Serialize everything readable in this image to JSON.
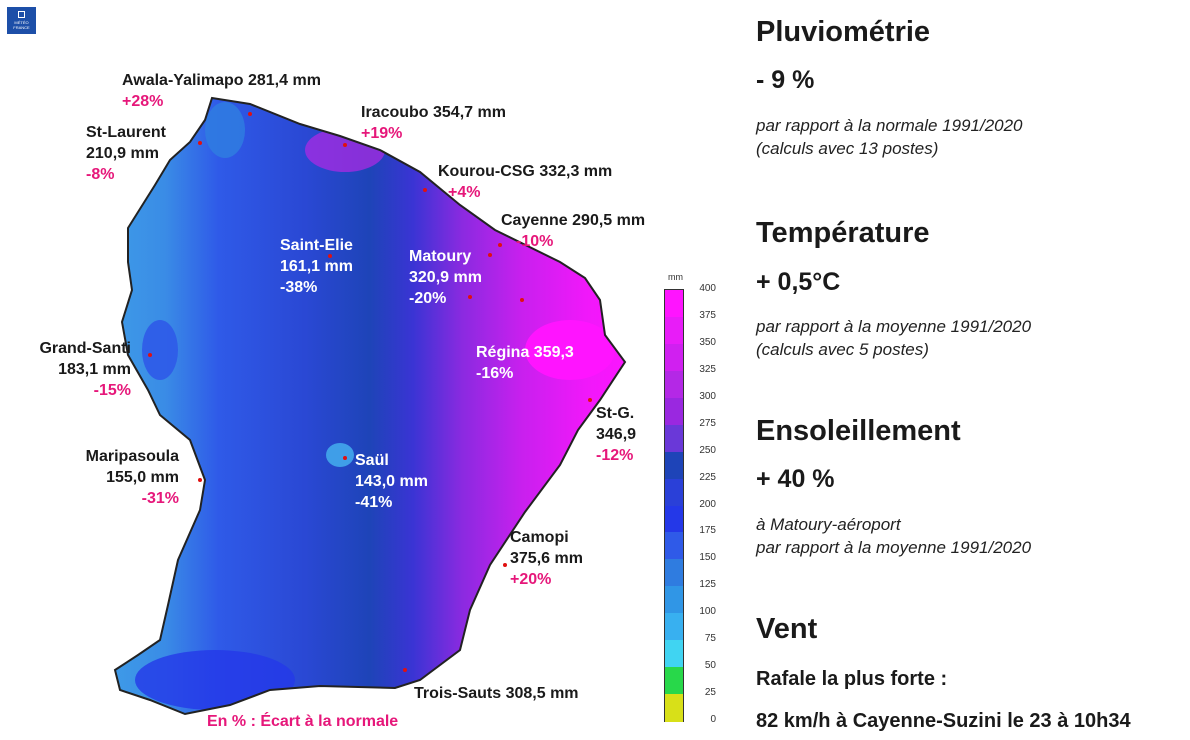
{
  "logo": {
    "text": "MÉTÉO FRANCE"
  },
  "map": {
    "stations": [
      {
        "name": "Awala-Yalimapo 281,4 mm",
        "pct": "+28%"
      },
      {
        "name": "Iracoubo 354,7 mm",
        "pct": "+19%"
      },
      {
        "name": "St-Laurent",
        "amount": "210,9 mm",
        "pct": "-8%"
      },
      {
        "name": "Kourou-CSG 332,3 mm",
        "pct": "+4%"
      },
      {
        "name": "Cayenne 290,5 mm",
        "pct": "-10%"
      },
      {
        "name": "Saint-Elie",
        "amount": "161,1 mm",
        "pct": "-38%"
      },
      {
        "name": "Matoury",
        "amount": "320,9 mm",
        "pct": "-20%"
      },
      {
        "name": "Grand-Santi",
        "amount": "183,1 mm",
        "pct": "-15%"
      },
      {
        "name": "Régina 359,3",
        "pct": "-16%"
      },
      {
        "name": "St-G.",
        "amount": "346,9",
        "pct": "-12%"
      },
      {
        "name": "Maripasoula",
        "amount": "155,0 mm",
        "pct": "-31%"
      },
      {
        "name": "Saül",
        "amount": "143,0 mm",
        "pct": "-41%"
      },
      {
        "name": "Camopi",
        "amount": "375,6 mm",
        "pct": "+20%"
      },
      {
        "name": "Trois-Sauts 308,5 mm"
      }
    ],
    "legend_note": "En % : Écart à la normale"
  },
  "colorbar": {
    "unit": "mm",
    "ticks": [
      "400",
      "375",
      "350",
      "325",
      "300",
      "275",
      "250",
      "225",
      "200",
      "175",
      "150",
      "125",
      "100",
      "75",
      "50",
      "25",
      "0"
    ],
    "colors": [
      "#ff14ff",
      "#e81cf8",
      "#d020f0",
      "#b428e6",
      "#9a28e0",
      "#6a38d8",
      "#1e44b8",
      "#2a40d8",
      "#2438e8",
      "#2f5ae8",
      "#2f7ce0",
      "#3096e6",
      "#38b0f0",
      "#40d4f2",
      "#28d84a",
      "#d8e018",
      "#d03010"
    ]
  },
  "panel": {
    "pluvio": {
      "title": "Pluviométrie",
      "value": "- 9 %",
      "note1": "par rapport à la normale 1991/2020",
      "note2": "(calculs avec 13 postes)"
    },
    "temp": {
      "title": "Température",
      "value": "+ 0,5°C",
      "note1": "par rapport à la moyenne 1991/2020",
      "note2": "(calculs avec 5 postes)"
    },
    "sun": {
      "title": "Ensoleillement",
      "value": "+ 40 %",
      "note1": "à Matoury-aéroport",
      "note2": "par rapport à la moyenne 1991/2020"
    },
    "wind": {
      "title": "Vent",
      "subtitle": "Rafale la plus forte :",
      "detail": "82 km/h à Cayenne-Suzini le 23 à 10h34"
    }
  }
}
